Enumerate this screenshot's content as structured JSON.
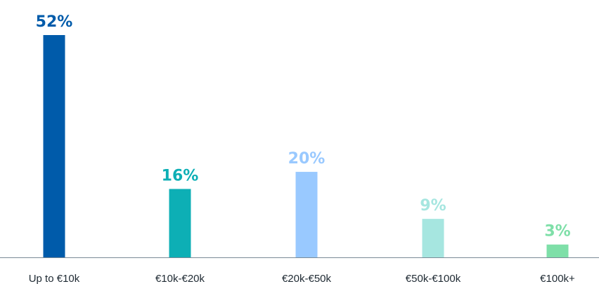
{
  "chart_data": {
    "type": "bar",
    "title": "",
    "xlabel": "",
    "ylabel": "",
    "ylim": [
      0,
      52
    ],
    "grid": false,
    "categories": [
      "Up to €10k",
      "€10k-€20k",
      "€20k-€50k",
      "€50k-€100k",
      "€100k+"
    ],
    "values": [
      52,
      16,
      20,
      9,
      3
    ],
    "value_labels": [
      "52%",
      "16%",
      "20%",
      "9%",
      "3%"
    ],
    "colors": [
      "#005BAA",
      "#0DAFB5",
      "#99C9FF",
      "#A6E6E0",
      "#7EDFA8"
    ],
    "baseline_color": "#7A8A96"
  }
}
